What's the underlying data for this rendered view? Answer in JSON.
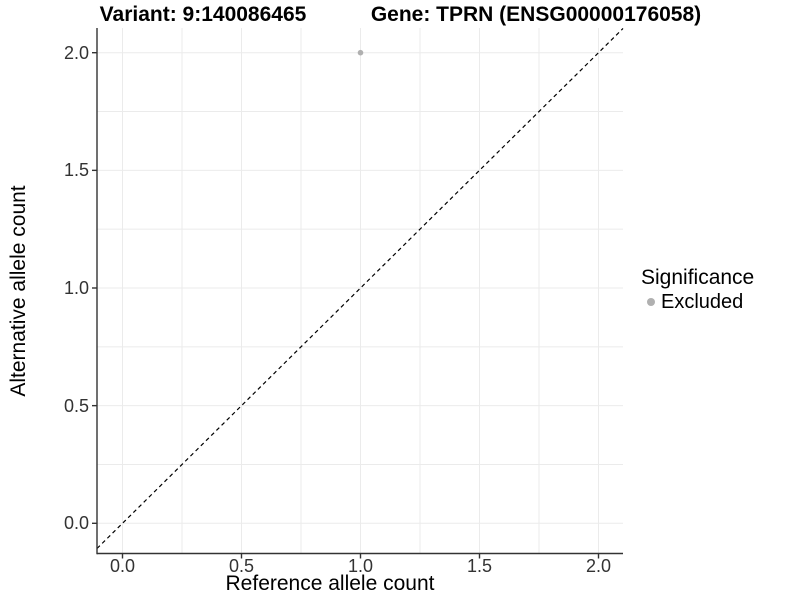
{
  "figure": {
    "background": "#ffffff"
  },
  "chart_data": {
    "type": "scatter",
    "titles": {
      "left": "Variant: 9:140086465",
      "right": "Gene: TPRN (ENSG00000176058)"
    },
    "xlabel": "Reference allele count",
    "ylabel": "Alternative allele count",
    "x_tick_values": [
      0,
      0.5,
      1,
      1.5,
      2
    ],
    "x_tick_labels": [
      "0.0",
      "0.5",
      "1.0",
      "1.5",
      "2.0"
    ],
    "y_tick_values": [
      0,
      0.5,
      1,
      1.5,
      2
    ],
    "y_tick_labels": [
      "0.0",
      "0.5",
      "1.0",
      "1.5",
      "2.0"
    ],
    "xlim": [
      -0.105,
      2.105
    ],
    "ylim": [
      -0.13,
      2.105
    ],
    "grid": {
      "minor_step": 0.25,
      "range": [
        0,
        2
      ],
      "color": "#ebebeb",
      "on": true
    },
    "reference_line": {
      "slope": 1,
      "intercept": 0,
      "style": "dashed",
      "color": "#000000"
    },
    "series": [
      {
        "name": "Excluded",
        "color": "#b0b0b0",
        "points": [
          [
            1.0,
            2.0
          ]
        ]
      }
    ],
    "legend": {
      "title": "Significance",
      "position": "right",
      "items": [
        {
          "label": "Excluded",
          "color": "#b0b0b0"
        }
      ]
    },
    "colors": {
      "axis_line": "#333333",
      "tick_label": "#333333",
      "text": "#000000"
    }
  }
}
